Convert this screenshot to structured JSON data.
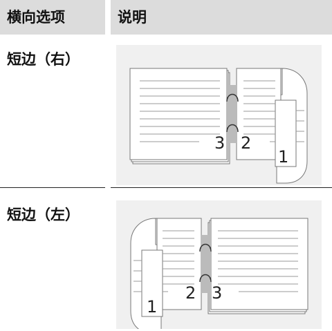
{
  "table": {
    "header": [
      "横向选项",
      "说明"
    ],
    "rows": [
      {
        "option": "短边（右）",
        "diagram_labels": [
          "3",
          "2",
          "1"
        ]
      },
      {
        "option": "短边（左）",
        "diagram_labels": [
          "2",
          "3",
          "1"
        ]
      }
    ]
  }
}
